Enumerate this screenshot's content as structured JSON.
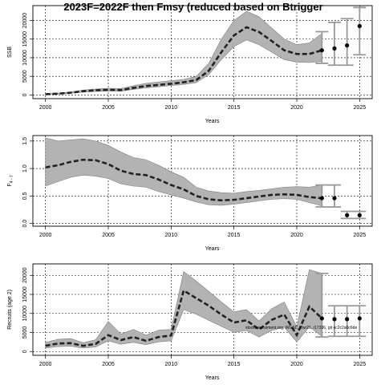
{
  "title": "2023F=2022F then Fmsy (reduced based on Btrigger",
  "annotation": "stockassessment.org, WGSC_2wr21, r17336, git ec2c2a0c6de",
  "colors": {
    "band": "#b3b3b3",
    "band_edge": "#7f7f7f",
    "line": "#222222",
    "ci": "#999999",
    "point": "#000000"
  },
  "chart_data": [
    {
      "type": "line",
      "xlabel": "Years",
      "ylabel": "SSB",
      "xlim": [
        1999,
        2026
      ],
      "ylim": [
        -1000,
        24000
      ],
      "x_ticks": [
        2000,
        2005,
        2010,
        2015,
        2020,
        2025
      ],
      "y_ticks": [
        0,
        5000,
        10000,
        15000,
        20000
      ],
      "grid": true,
      "series": [
        {
          "x": [
            2000,
            2001,
            2002,
            2003,
            2004,
            2005,
            2006,
            2007,
            2008,
            2009,
            2010,
            2011,
            2012,
            2013,
            2014,
            2015,
            2016,
            2017,
            2018,
            2019,
            2020,
            2021,
            2022
          ],
          "y": [
            200,
            350,
            600,
            1000,
            1250,
            1400,
            1300,
            1900,
            2400,
            2700,
            3000,
            3400,
            4000,
            6500,
            11500,
            16000,
            18200,
            16900,
            14500,
            12000,
            11000,
            11000,
            12000
          ],
          "lower": [
            100,
            250,
            450,
            750,
            950,
            1050,
            1000,
            1500,
            1900,
            2200,
            2500,
            2800,
            3300,
            5500,
            9500,
            13000,
            14800,
            13500,
            11500,
            9500,
            8800,
            8700,
            9000
          ],
          "upper": [
            300,
            500,
            800,
            1300,
            1600,
            1800,
            1700,
            2500,
            3100,
            3500,
            3800,
            4200,
            5000,
            8500,
            15000,
            20000,
            22500,
            21000,
            18000,
            15000,
            13500,
            14000,
            16500
          ]
        }
      ],
      "forecast": {
        "x": [
          2022,
          2023,
          2024,
          2025
        ],
        "y": [
          12000,
          12500,
          13300,
          18500
        ],
        "lower": [
          8500,
          8000,
          8000,
          10800
        ],
        "upper": [
          17000,
          19500,
          20500,
          23500
        ]
      }
    },
    {
      "type": "line",
      "xlabel": "Years",
      "ylabel": "F",
      "ylabel_sub": "4 - 7",
      "xlim": [
        1999,
        2026
      ],
      "ylim": [
        -0.05,
        1.6
      ],
      "x_ticks": [
        2000,
        2005,
        2010,
        2015,
        2020,
        2025
      ],
      "y_ticks": [
        0.0,
        0.5,
        1.0,
        1.5
      ],
      "y_tick_labels": [
        "0.0",
        "0.5",
        "1.0",
        "1.5"
      ],
      "grid": true,
      "series": [
        {
          "x": [
            2000,
            2001,
            2002,
            2003,
            2004,
            2005,
            2006,
            2007,
            2008,
            2009,
            2010,
            2011,
            2012,
            2013,
            2014,
            2015,
            2016,
            2017,
            2018,
            2019,
            2020,
            2021,
            2022
          ],
          "y": [
            1.02,
            1.06,
            1.12,
            1.16,
            1.15,
            1.08,
            0.96,
            0.9,
            0.88,
            0.8,
            0.7,
            0.62,
            0.5,
            0.44,
            0.42,
            0.43,
            0.46,
            0.49,
            0.52,
            0.53,
            0.52,
            0.48,
            0.46
          ],
          "lower": [
            0.68,
            0.76,
            0.84,
            0.88,
            0.86,
            0.82,
            0.72,
            0.68,
            0.66,
            0.58,
            0.52,
            0.46,
            0.39,
            0.34,
            0.33,
            0.35,
            0.38,
            0.41,
            0.44,
            0.45,
            0.44,
            0.38,
            0.32
          ],
          "upper": [
            1.56,
            1.5,
            1.52,
            1.54,
            1.5,
            1.42,
            1.3,
            1.2,
            1.16,
            1.06,
            0.94,
            0.84,
            0.66,
            0.59,
            0.56,
            0.55,
            0.58,
            0.6,
            0.63,
            0.66,
            0.67,
            0.66,
            0.7
          ]
        }
      ],
      "forecast": {
        "x": [
          2022,
          2023,
          2024,
          2025
        ],
        "y": [
          0.46,
          0.46,
          0.15,
          0.15
        ],
        "lower": [
          0.3,
          0.3,
          0.09,
          0.09
        ],
        "upper": [
          0.7,
          0.7,
          0.22,
          0.22
        ]
      }
    },
    {
      "type": "line",
      "xlabel": "Years",
      "ylabel": "Recruits (age 2)",
      "xlim": [
        1999,
        2026
      ],
      "ylim": [
        -1000,
        23000
      ],
      "x_ticks": [
        2000,
        2005,
        2010,
        2015,
        2020,
        2025
      ],
      "y_ticks": [
        0,
        5000,
        10000,
        15000,
        20000
      ],
      "grid": true,
      "series": [
        {
          "x": [
            2000,
            2001,
            2002,
            2003,
            2004,
            2005,
            2006,
            2007,
            2008,
            2009,
            2010,
            2011,
            2012,
            2013,
            2014,
            2015,
            2016,
            2017,
            2018,
            2019,
            2020,
            2021,
            2022
          ],
          "y": [
            1500,
            2100,
            2200,
            1500,
            2000,
            4300,
            3000,
            3800,
            2800,
            3800,
            4200,
            16000,
            14000,
            12000,
            9700,
            7600,
            8200,
            5800,
            8300,
            9700,
            4300,
            11800,
            8700
          ],
          "lower": [
            900,
            1300,
            1400,
            900,
            1200,
            2800,
            1900,
            2400,
            1800,
            2500,
            2800,
            11000,
            9800,
            8200,
            6600,
            5000,
            5500,
            3800,
            5500,
            6400,
            2500,
            6500,
            4000
          ],
          "upper": [
            2400,
            3200,
            3400,
            2300,
            3100,
            7900,
            4600,
            5800,
            4300,
            5600,
            5800,
            21000,
            18500,
            15800,
            13000,
            10400,
            11000,
            8000,
            11200,
            13000,
            6500,
            21500,
            20500
          ]
        }
      ],
      "forecast": {
        "x": [
          2022,
          2023,
          2024,
          2025
        ],
        "y": [
          8700,
          8500,
          8500,
          8700
        ],
        "lower": [
          3800,
          4000,
          4000,
          4000
        ],
        "upper": [
          20500,
          12000,
          12000,
          12000
        ]
      }
    }
  ]
}
